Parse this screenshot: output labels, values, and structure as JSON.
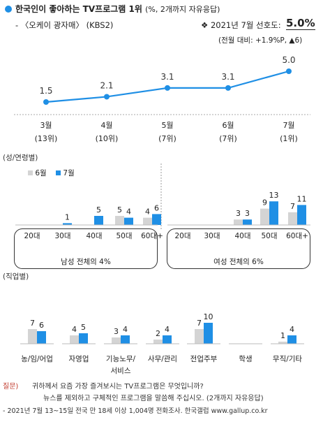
{
  "header": {
    "title": "한국인이 좋아하는 TV프로그램 1위",
    "title_note": "(%, 2개까지 자유응답)",
    "subtitle": "- 〈오케이 광자매〉 (KBS2)",
    "pref_label": "❖ 2021년 7월 선호도:",
    "pref_value": "5.0%",
    "change_label": "(전월 대비: +1.9%P, ▲6)"
  },
  "chart_data": [
    {
      "type": "line",
      "categories": [
        "3월",
        "4월",
        "5월",
        "6월",
        "7월"
      ],
      "ranks": [
        "(13위)",
        "(10위)",
        "(7위)",
        "(7위)",
        "(1위)"
      ],
      "values": [
        1.5,
        2.1,
        3.1,
        3.1,
        5.0
      ],
      "color": "#1f8fe5"
    },
    {
      "type": "bar",
      "section_label": "(성/연령별)",
      "series": [
        {
          "name": "6월",
          "color": "#d4d4d4"
        },
        {
          "name": "7월",
          "color": "#1f8fe5"
        }
      ],
      "categories": [
        "20대",
        "30대",
        "40대",
        "50대",
        "60대+",
        "20대",
        "30대",
        "40대",
        "50대",
        "60대+"
      ],
      "june": [
        null,
        null,
        null,
        5,
        4,
        null,
        null,
        3,
        9,
        7
      ],
      "july": [
        null,
        1,
        5,
        4,
        6,
        null,
        null,
        3,
        13,
        11
      ],
      "june_labels": [
        "",
        "",
        "",
        "5",
        "4",
        "",
        "",
        "3",
        "9",
        "7"
      ],
      "july_labels": [
        "",
        "1",
        "5",
        "4",
        "6",
        "",
        "",
        "3",
        "13",
        "11"
      ],
      "groups": [
        "남성 전체의 4%",
        "여성 전체의 6%"
      ]
    },
    {
      "type": "bar",
      "section_label": "(직업별)",
      "categories": [
        "농/임/어업",
        "자영업",
        "기능노무/",
        "사무/관리",
        "전업주부",
        "학생",
        "무직/기타"
      ],
      "category_line2": [
        "",
        "",
        "서비스",
        "",
        "",
        "",
        ""
      ],
      "june": [
        7,
        4,
        3,
        2,
        7,
        null,
        1
      ],
      "july": [
        6,
        5,
        4,
        4,
        10,
        null,
        4
      ],
      "june_labels": [
        "7",
        "4",
        "3",
        "2",
        "7",
        "",
        "1"
      ],
      "july_labels": [
        "6",
        "5",
        "4",
        "4",
        "10",
        "",
        "4"
      ]
    }
  ],
  "footer": {
    "q_label": "질문)",
    "q_line1": "귀하께서 요즘 가장 즐겨보시는 TV프로그램은 무엇입니까?",
    "q_line2": "뉴스를 제외하고 구체적인 프로그램을 말씀해 주십시오. (2개까지 자유응답)",
    "source": "- 2021년 7월 13~15일 전국 만 18세 이상 1,004명 전화조사. 한국갤럽 www.gallup.co.kr"
  }
}
